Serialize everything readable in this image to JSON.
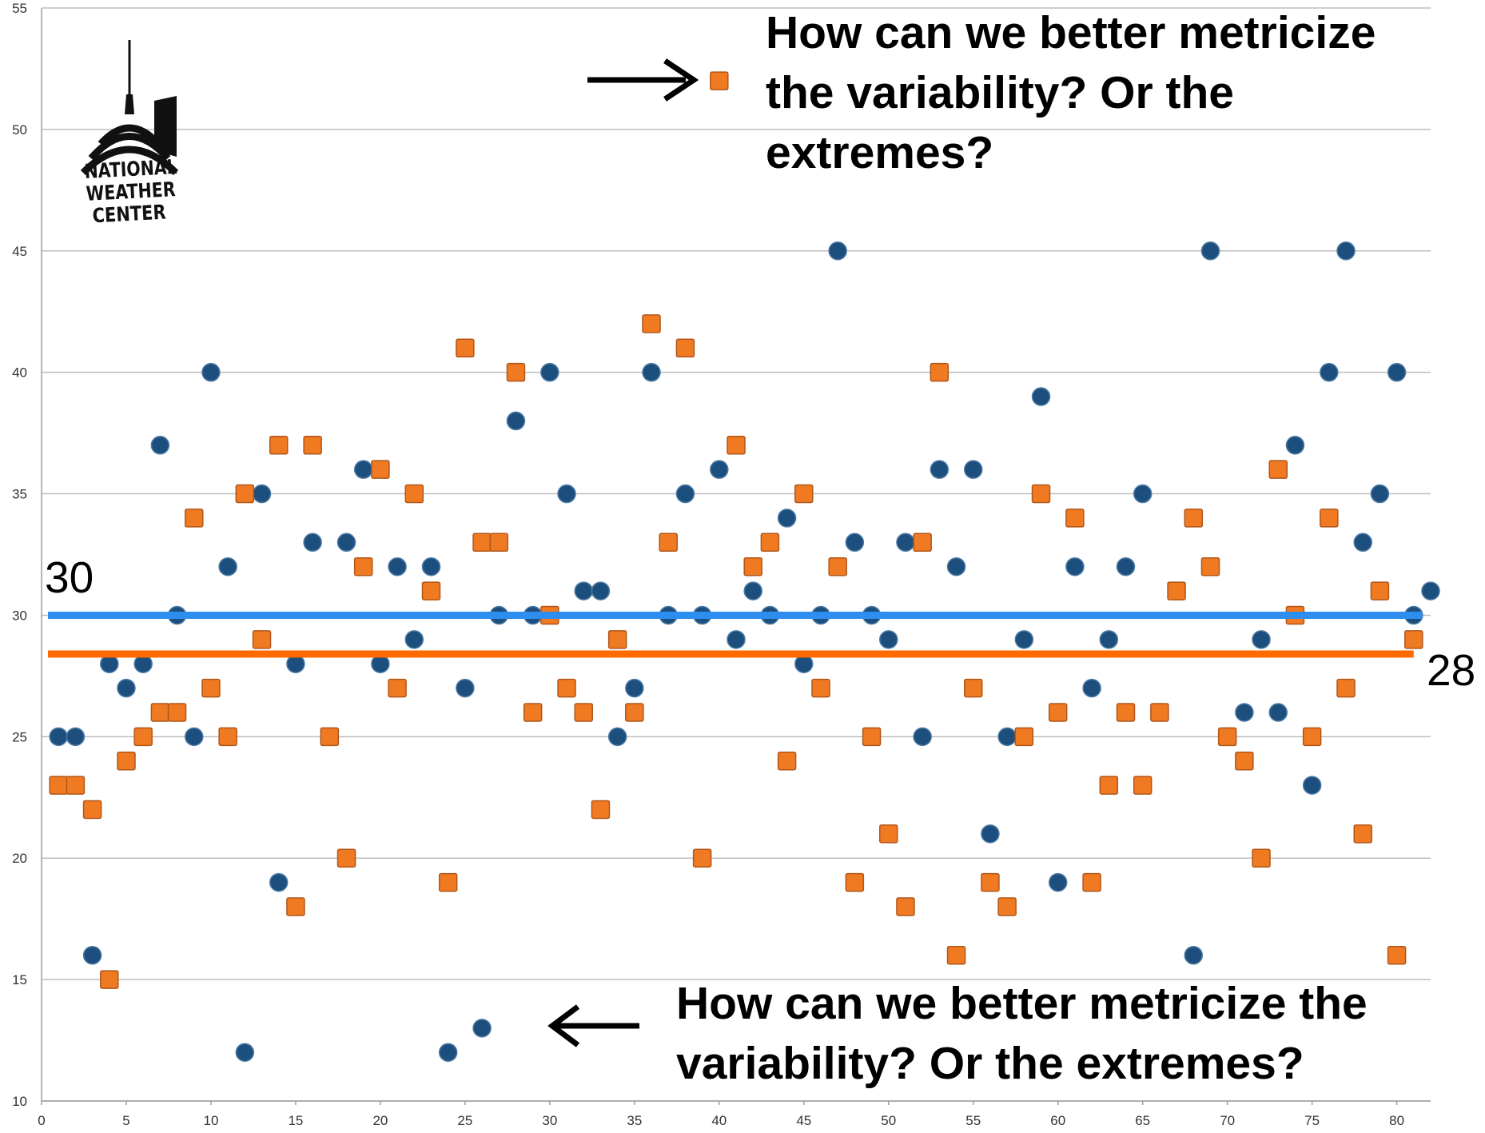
{
  "logo": {
    "lines": [
      "NATIONAL",
      "WEATHER",
      "CENTER"
    ]
  },
  "annotations": {
    "top_text": [
      "How can we better metricize",
      "the variability? Or the",
      "extremes?"
    ],
    "bottom_text": [
      "How can we better metricize the",
      "variability? Or the extremes?"
    ]
  },
  "mean_labels": {
    "blue": "30",
    "orange": "28"
  },
  "colors": {
    "blue_series": "#1c4f7d",
    "orange_series": "#f07a22",
    "blue_mean": "#2e8ef0",
    "orange_mean": "#ff6a00",
    "grid": "#bdbdbd"
  },
  "chart_data": {
    "type": "scatter",
    "xlim": [
      0,
      82
    ],
    "ylim": [
      10,
      55
    ],
    "x_ticks": [
      0,
      5,
      10,
      15,
      20,
      25,
      30,
      35,
      40,
      45,
      50,
      55,
      60,
      65,
      70,
      75,
      80
    ],
    "y_ticks": [
      10,
      15,
      20,
      25,
      30,
      35,
      40,
      45,
      50,
      55
    ],
    "grid": "horizontal",
    "legend": "none",
    "series": [
      {
        "marker": "circle",
        "color": "#1c4f7d",
        "x": [
          1,
          2,
          3,
          4,
          5,
          6,
          7,
          8,
          9,
          10,
          11,
          12,
          13,
          14,
          15,
          16,
          17,
          18,
          19,
          20,
          21,
          22,
          23,
          24,
          25,
          26,
          27,
          28,
          29,
          30,
          31,
          32,
          33,
          34,
          35,
          36,
          37,
          38,
          39,
          40,
          41,
          42,
          43,
          44,
          45,
          46,
          47,
          48,
          49,
          50,
          51,
          52,
          53,
          54,
          55,
          56,
          57,
          58,
          59,
          60,
          61,
          62,
          63,
          64,
          65,
          66,
          67,
          68,
          69,
          70,
          71,
          72,
          73,
          74,
          75,
          76,
          77,
          78,
          79,
          80,
          81,
          82
        ],
        "y": [
          25,
          25,
          16,
          28,
          27,
          28,
          37,
          30,
          25,
          40,
          32,
          12,
          35,
          19,
          28,
          33,
          25,
          33,
          36,
          28,
          32,
          29,
          32,
          12,
          27,
          13,
          30,
          38,
          30,
          40,
          35,
          31,
          31,
          25,
          27,
          40,
          30,
          35,
          30,
          36,
          29,
          31,
          30,
          34,
          28,
          30,
          45,
          33,
          30,
          29,
          33,
          25,
          36,
          32,
          36,
          21,
          25,
          29,
          39,
          19,
          32,
          27,
          29,
          32,
          35,
          26,
          31,
          16,
          45,
          25,
          26,
          29,
          26,
          37,
          23,
          40,
          45,
          33,
          35,
          40,
          30,
          31
        ]
      },
      {
        "marker": "square",
        "color": "#f07a22",
        "x": [
          1,
          2,
          3,
          4,
          5,
          6,
          7,
          8,
          9,
          10,
          11,
          12,
          13,
          14,
          15,
          16,
          17,
          18,
          19,
          20,
          21,
          22,
          23,
          24,
          25,
          26,
          27,
          28,
          29,
          30,
          31,
          32,
          33,
          34,
          35,
          36,
          37,
          38,
          39,
          40,
          41,
          42,
          43,
          44,
          45,
          46,
          47,
          48,
          49,
          50,
          51,
          52,
          53,
          54,
          55,
          56,
          57,
          58,
          59,
          60,
          61,
          62,
          63,
          64,
          65,
          66,
          67,
          68,
          69,
          70,
          71,
          72,
          73,
          74,
          75,
          76,
          77,
          78,
          79,
          80,
          81
        ],
        "y": [
          23,
          23,
          22,
          15,
          24,
          25,
          26,
          26,
          34,
          27,
          25,
          35,
          29,
          37,
          18,
          37,
          25,
          20,
          32,
          36,
          27,
          35,
          31,
          19,
          41,
          33,
          33,
          40,
          26,
          30,
          27,
          26,
          22,
          29,
          26,
          42,
          33,
          41,
          20,
          52,
          37,
          32,
          33,
          24,
          35,
          27,
          32,
          19,
          25,
          21,
          18,
          33,
          40,
          16,
          27,
          19,
          18,
          25,
          35,
          26,
          34,
          19,
          23,
          26,
          23,
          26,
          31,
          34,
          32,
          25,
          24,
          20,
          36,
          30,
          25,
          34,
          27,
          21,
          31,
          16,
          29
        ]
      }
    ],
    "mean_lines": [
      {
        "value": 30,
        "color": "#2e8ef0"
      },
      {
        "value": 28.4,
        "color": "#ff6a00"
      }
    ]
  }
}
